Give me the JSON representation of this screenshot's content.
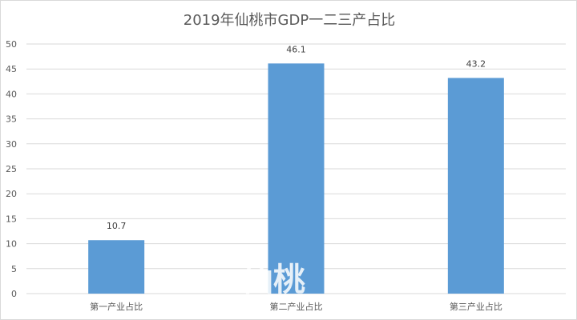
{
  "chart_data": {
    "type": "bar",
    "title": "2019年仙桃市GDP一二三产占比",
    "categories": [
      "第一产业占比",
      "第二产业占比",
      "第三产业占比"
    ],
    "values": [
      10.7,
      46.1,
      43.2
    ],
    "data_labels": [
      "10.7",
      "46.1",
      "43.2"
    ],
    "yticks": [
      "0",
      "5",
      "10",
      "15",
      "20",
      "25",
      "30",
      "35",
      "40",
      "45",
      "50"
    ],
    "ylim": [
      0,
      50
    ],
    "grid": true,
    "legend": "none",
    "bar_color": "#5b9bd5"
  },
  "watermark": "仙桃"
}
